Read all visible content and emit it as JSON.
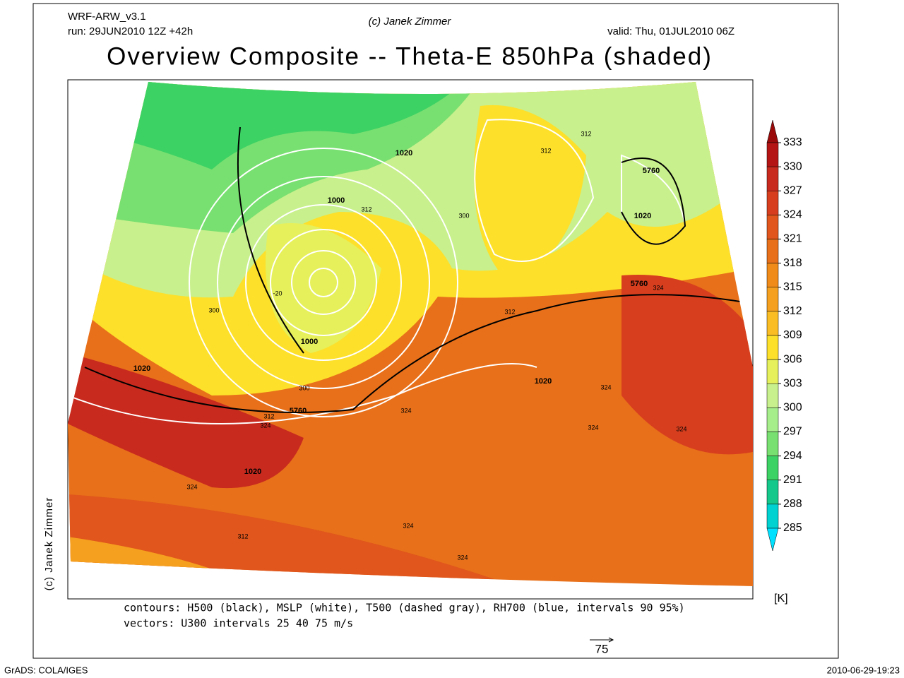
{
  "header": {
    "model": "WRF-ARW_v3.1",
    "run": "run: 29JUN2010 12Z +42h",
    "copyright": "(c) Janek Zimmer",
    "valid": "valid: Thu, 01JUL2010 06Z",
    "title": "Overview Composite -- Theta-E 850hPa (shaded)"
  },
  "colorbar": {
    "levels": [
      333,
      330,
      327,
      324,
      321,
      318,
      315,
      312,
      309,
      306,
      303,
      300,
      297,
      294,
      291,
      288,
      285
    ],
    "colors": [
      "#9a0a0a",
      "#b41414",
      "#c82a1e",
      "#d73e1e",
      "#e0561c",
      "#e8701a",
      "#f08a18",
      "#f5a01e",
      "#fbbd24",
      "#fde02a",
      "#e6f05a",
      "#c8f08c",
      "#a6ee8c",
      "#78e070",
      "#3cd264",
      "#14c88c",
      "#00d2d2",
      "#00e0ff"
    ],
    "unit": "[K]"
  },
  "map_labels": [
    "1020",
    "1000",
    "1000",
    "1020",
    "5760",
    "1020",
    "1020",
    "5760",
    "1020",
    "5760",
    "312",
    "312",
    "300",
    "312",
    "324",
    "324",
    "312",
    "324",
    "312",
    "324",
    "324",
    "324",
    "324",
    "324",
    "324",
    "300",
    "300",
    "312",
    "-20"
  ],
  "footer": {
    "contours": "contours: H500 (black), MSLP (white), T500 (dashed gray), RH700 (blue, intervals 90 95%)",
    "vectors": "vectors: U300 intervals 25 40 75 m/s",
    "vector_ref": "75",
    "side_credit": "(c) Janek Zimmer",
    "grads": "GrADS: COLA/IGES",
    "timestamp": "2010-06-29-19:23"
  }
}
